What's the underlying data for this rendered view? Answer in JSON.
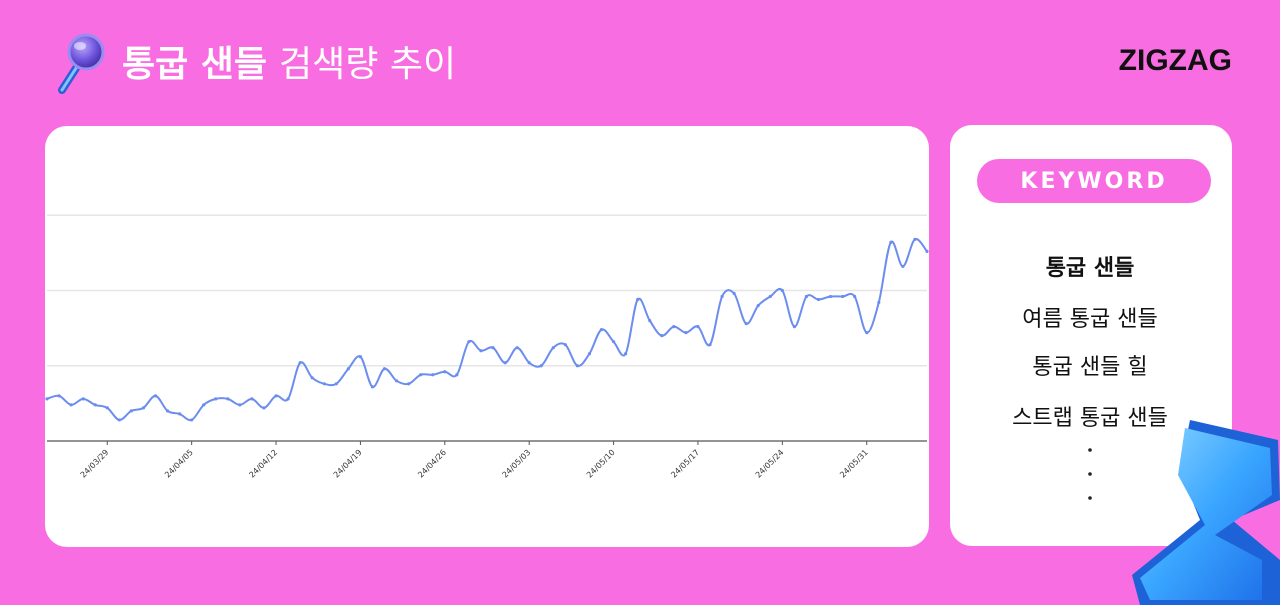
{
  "header": {
    "title_bold": "통굽 샌들",
    "title_light": "검색량 추이",
    "logo": "ZIGZAG"
  },
  "chart_data": {
    "type": "line",
    "color": "#6b8df0",
    "categories": [
      null,
      null,
      null,
      null,
      null,
      "24/03/29",
      null,
      null,
      null,
      null,
      null,
      null,
      "24/04/05",
      null,
      null,
      null,
      null,
      null,
      null,
      "24/04/12",
      null,
      null,
      null,
      null,
      null,
      null,
      "24/04/19",
      null,
      null,
      null,
      null,
      null,
      null,
      "24/04/26",
      null,
      null,
      null,
      null,
      null,
      null,
      "24/05/03",
      null,
      null,
      null,
      null,
      null,
      null,
      "24/05/10",
      null,
      null,
      null,
      null,
      null,
      null,
      "24/05/17",
      null,
      null,
      null,
      null,
      null,
      null,
      "24/05/24",
      null,
      null,
      null,
      null,
      null,
      null,
      "24/05/31",
      null,
      null,
      null,
      null,
      null
    ],
    "values": [
      14,
      15,
      12,
      14,
      12,
      11,
      7,
      10,
      11,
      15,
      10,
      9,
      7,
      12,
      14,
      14,
      12,
      14,
      11,
      15,
      14,
      26,
      21,
      19,
      19,
      24,
      28,
      18,
      24,
      20,
      19,
      22,
      22,
      23,
      22,
      33,
      30,
      31,
      26,
      31,
      26,
      25,
      31,
      32,
      25,
      29,
      37,
      33,
      29,
      47,
      40,
      35,
      38,
      36,
      38,
      32,
      48,
      49,
      39,
      45,
      48,
      50,
      38,
      48,
      47,
      48,
      48,
      48,
      36,
      46,
      66,
      58,
      67,
      63
    ],
    "ylim": [
      0,
      100
    ],
    "yticks": [
      0,
      25,
      50,
      75
    ],
    "grid": true
  },
  "keyword_panel": {
    "heading": "KEYWORD",
    "items": [
      "통굽 샌들",
      "여름 통굽 샌들",
      "통굽 샌들 힐",
      "스트랩 통굽 샌들"
    ]
  }
}
